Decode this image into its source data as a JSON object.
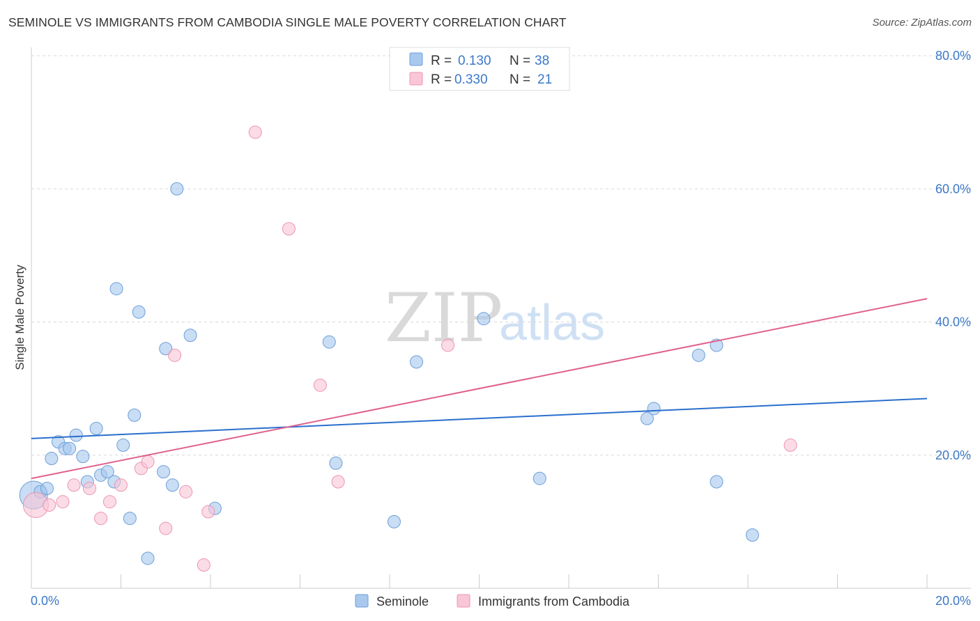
{
  "title": "SEMINOLE VS IMMIGRANTS FROM CAMBODIA SINGLE MALE POVERTY CORRELATION CHART",
  "source": "Source: ZipAtlas.com",
  "watermark": {
    "zip": "ZIP",
    "atlas": "atlas"
  },
  "chart_data": {
    "type": "scatter",
    "title": "SEMINOLE VS IMMIGRANTS FROM CAMBODIA SINGLE MALE POVERTY CORRELATION CHART",
    "xlabel": "",
    "ylabel": "Single Male Poverty",
    "xlim": [
      0,
      20
    ],
    "ylim": [
      0,
      80
    ],
    "x_tick_labels": [
      "0.0%",
      "20.0%"
    ],
    "y_ticks": [
      20,
      40,
      60,
      80
    ],
    "y_tick_labels": [
      "20.0%",
      "40.0%",
      "60.0%",
      "80.0%"
    ],
    "grid": "horizontal dashed",
    "legend_position": "top-center",
    "series": [
      {
        "name": "Seminole",
        "color": "#a8c8ee",
        "stroke": "#6d9fd8",
        "line_color": "#2a6fcd",
        "R": "0.130",
        "N": "38",
        "trend": {
          "x": [
            0,
            20
          ],
          "y": [
            22.5,
            28.5
          ]
        },
        "points": [
          [
            0.05,
            14.0
          ],
          [
            0.2,
            14.5
          ],
          [
            0.35,
            15.0
          ],
          [
            0.45,
            19.5
          ],
          [
            0.6,
            22.0
          ],
          [
            0.75,
            21.0
          ],
          [
            0.85,
            21.0
          ],
          [
            1.0,
            23.0
          ],
          [
            1.15,
            19.8
          ],
          [
            1.25,
            16.0
          ],
          [
            1.45,
            24.0
          ],
          [
            1.55,
            17.0
          ],
          [
            1.7,
            17.5
          ],
          [
            1.85,
            16.0
          ],
          [
            1.9,
            45.0
          ],
          [
            2.05,
            21.5
          ],
          [
            2.2,
            10.5
          ],
          [
            2.3,
            26.0
          ],
          [
            2.4,
            41.5
          ],
          [
            2.6,
            4.5
          ],
          [
            2.95,
            17.5
          ],
          [
            3.0,
            36.0
          ],
          [
            3.15,
            15.5
          ],
          [
            3.25,
            60.0
          ],
          [
            3.55,
            38.0
          ],
          [
            4.1,
            12.0
          ],
          [
            6.65,
            37.0
          ],
          [
            6.8,
            18.8
          ],
          [
            8.1,
            10.0
          ],
          [
            8.6,
            34.0
          ],
          [
            10.1,
            40.5
          ],
          [
            11.35,
            16.5
          ],
          [
            13.75,
            25.5
          ],
          [
            13.9,
            27.0
          ],
          [
            14.9,
            35.0
          ],
          [
            15.3,
            16.0
          ],
          [
            15.3,
            36.5
          ],
          [
            16.1,
            8.0
          ]
        ],
        "point_sizes": [
          20,
          9,
          9,
          9,
          9,
          9,
          9,
          9,
          9,
          9,
          9,
          9,
          9,
          9,
          9,
          9,
          9,
          9,
          9,
          9,
          9,
          9,
          9,
          9,
          9,
          9,
          9,
          9,
          9,
          9,
          9,
          9,
          9,
          9,
          9,
          9,
          9,
          9
        ]
      },
      {
        "name": "Immigrants from Cambodia",
        "color": "#f9c6d6",
        "stroke": "#ec94b0",
        "line_color": "#e0608e",
        "R": "0.330",
        "N": "21",
        "trend": {
          "x": [
            0,
            20
          ],
          "y": [
            16.5,
            43.5
          ]
        },
        "points": [
          [
            0.1,
            12.5
          ],
          [
            0.4,
            12.5
          ],
          [
            0.7,
            13.0
          ],
          [
            0.95,
            15.5
          ],
          [
            1.3,
            15.0
          ],
          [
            1.55,
            10.5
          ],
          [
            1.75,
            13.0
          ],
          [
            2.0,
            15.5
          ],
          [
            2.45,
            18.0
          ],
          [
            2.6,
            19.0
          ],
          [
            3.0,
            9.0
          ],
          [
            3.2,
            35.0
          ],
          [
            3.45,
            14.5
          ],
          [
            3.95,
            11.5
          ],
          [
            3.85,
            3.5
          ],
          [
            5.0,
            68.5
          ],
          [
            5.75,
            54.0
          ],
          [
            6.45,
            30.5
          ],
          [
            6.85,
            16.0
          ],
          [
            9.3,
            36.5
          ],
          [
            16.95,
            21.5
          ]
        ],
        "point_sizes": [
          18,
          9,
          9,
          9,
          9,
          9,
          9,
          9,
          9,
          9,
          9,
          9,
          9,
          9,
          9,
          9,
          9,
          9,
          9,
          9,
          9
        ]
      }
    ]
  },
  "legend": {
    "rows": [
      {
        "r_label": "R =",
        "r_value": "0.130",
        "n_label": "N =",
        "n_value": "38",
        "swatch": "#a8c8ee",
        "swatch_stroke": "#6d9fd8"
      },
      {
        "r_label": "R =",
        "r_value": "0.330",
        "n_label": "N =",
        "n_value": "21",
        "swatch": "#f9c6d6",
        "swatch_stroke": "#ec94b0"
      }
    ]
  },
  "bottom_legend": [
    {
      "label": "Seminole",
      "swatch": "#a8c8ee",
      "swatch_stroke": "#6d9fd8"
    },
    {
      "label": "Immigrants from Cambodia",
      "swatch": "#f9c6d6",
      "swatch_stroke": "#ec94b0"
    }
  ]
}
